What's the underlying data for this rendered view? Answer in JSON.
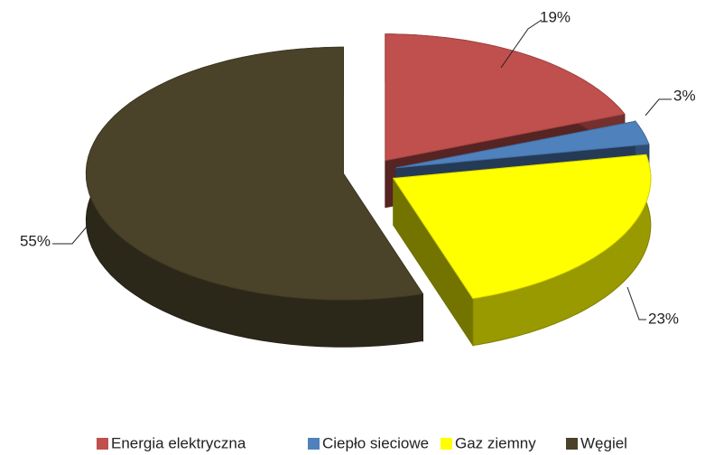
{
  "chart_data": {
    "type": "pie",
    "categories": [
      "Energia elektryczna",
      "Ciepło sieciowe",
      "Gaz ziemny",
      "Węgiel"
    ],
    "values": [
      19,
      3,
      23,
      55
    ],
    "value_labels": [
      "19%",
      "3%",
      "23%",
      "55%"
    ],
    "colors": [
      "#c0504d",
      "#4f81bd",
      "#ffff00",
      "#4a4229"
    ],
    "legend": "bottom"
  }
}
